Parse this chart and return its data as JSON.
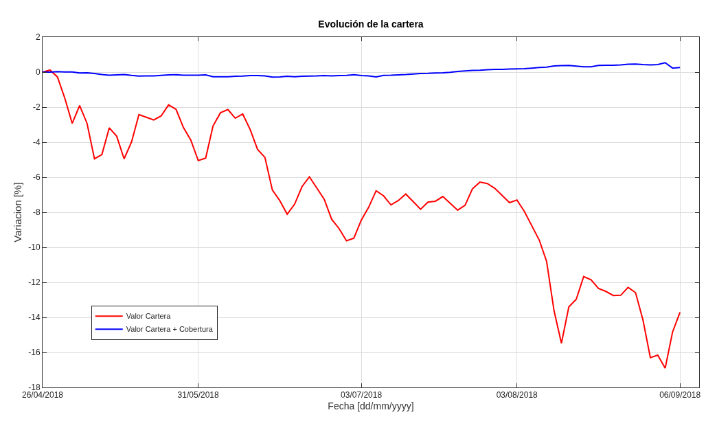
{
  "chart_data": {
    "type": "line",
    "title": "Evolución de la cartera",
    "xlabel": "Fecha [dd/mm/yyyy]",
    "ylabel": "Variacion [%]",
    "categories": [
      "26/04/2018",
      null,
      null,
      null,
      null,
      null,
      null,
      null,
      null,
      null,
      null,
      null,
      null,
      null,
      null,
      null,
      null,
      null,
      null,
      null,
      null,
      "31/05/2018",
      null,
      null,
      null,
      null,
      null,
      null,
      null,
      null,
      null,
      null,
      null,
      null,
      null,
      null,
      null,
      null,
      null,
      null,
      null,
      null,
      null,
      "03/07/2018",
      null,
      null,
      null,
      null,
      null,
      null,
      null,
      null,
      null,
      null,
      null,
      null,
      null,
      null,
      null,
      null,
      null,
      null,
      null,
      null,
      "03/08/2018",
      null,
      null,
      null,
      null,
      null,
      null,
      null,
      null,
      null,
      null,
      null,
      null,
      null,
      null,
      null,
      null,
      null,
      null,
      null,
      null,
      null,
      "06/09/2018"
    ],
    "series": [
      {
        "name": "Valor Cartera",
        "color": "#ff0000",
        "values": [
          0,
          0.12,
          -0.27,
          -1.49,
          -2.93,
          -1.91,
          -2.93,
          -4.95,
          -4.71,
          -3.18,
          -3.66,
          -4.95,
          -3.99,
          -2.42,
          -2.58,
          -2.73,
          -2.5,
          -1.87,
          -2.12,
          -3.16,
          -3.88,
          -5.05,
          -4.91,
          -3.07,
          -2.32,
          -2.14,
          -2.63,
          -2.39,
          -3.27,
          -4.41,
          -4.87,
          -6.73,
          -7.33,
          -8.11,
          -7.54,
          -6.54,
          -5.98,
          -6.62,
          -7.26,
          -8.4,
          -8.93,
          -9.63,
          -9.48,
          -8.45,
          -7.71,
          -6.77,
          -7.06,
          -7.58,
          -7.33,
          -6.96,
          -7.39,
          -7.83,
          -7.42,
          -7.37,
          -7.1,
          -7.49,
          -7.88,
          -7.6,
          -6.66,
          -6.28,
          -6.36,
          -6.63,
          -7.04,
          -7.45,
          -7.3,
          -7.95,
          -8.77,
          -9.58,
          -10.8,
          -13.61,
          -15.48,
          -13.4,
          -12.97,
          -11.67,
          -11.86,
          -12.35,
          -12.52,
          -12.75,
          -12.74,
          -12.29,
          -12.59,
          -14.15,
          -16.3,
          -16.16,
          -16.9,
          -14.83,
          -13.71
        ]
      },
      {
        "name": "Valor Cartera + Cobertura",
        "color": "#0000ff",
        "values": [
          0,
          0,
          0.03,
          0.01,
          0.01,
          -0.05,
          -0.04,
          -0.08,
          -0.14,
          -0.18,
          -0.16,
          -0.14,
          -0.19,
          -0.23,
          -0.22,
          -0.22,
          -0.19,
          -0.16,
          -0.15,
          -0.18,
          -0.18,
          -0.18,
          -0.16,
          -0.26,
          -0.26,
          -0.26,
          -0.24,
          -0.23,
          -0.2,
          -0.2,
          -0.22,
          -0.28,
          -0.27,
          -0.24,
          -0.26,
          -0.24,
          -0.23,
          -0.22,
          -0.2,
          -0.22,
          -0.2,
          -0.19,
          -0.15,
          -0.2,
          -0.22,
          -0.27,
          -0.19,
          -0.18,
          -0.16,
          -0.14,
          -0.11,
          -0.08,
          -0.07,
          -0.05,
          -0.04,
          -0.01,
          0.04,
          0.07,
          0.1,
          0.11,
          0.14,
          0.16,
          0.16,
          0.18,
          0.19,
          0.2,
          0.23,
          0.26,
          0.28,
          0.35,
          0.37,
          0.38,
          0.34,
          0.3,
          0.3,
          0.38,
          0.39,
          0.39,
          0.41,
          0.45,
          0.46,
          0.43,
          0.41,
          0.43,
          0.54,
          0.23,
          0.26
        ]
      }
    ],
    "ylim": [
      -18,
      2
    ],
    "yticks": [
      -18,
      -16,
      -14,
      -12,
      -10,
      -8,
      -6,
      -4,
      -2,
      0,
      2
    ],
    "grid": true,
    "legend": "bottom left",
    "marker": "none",
    "line_style": "solid"
  }
}
